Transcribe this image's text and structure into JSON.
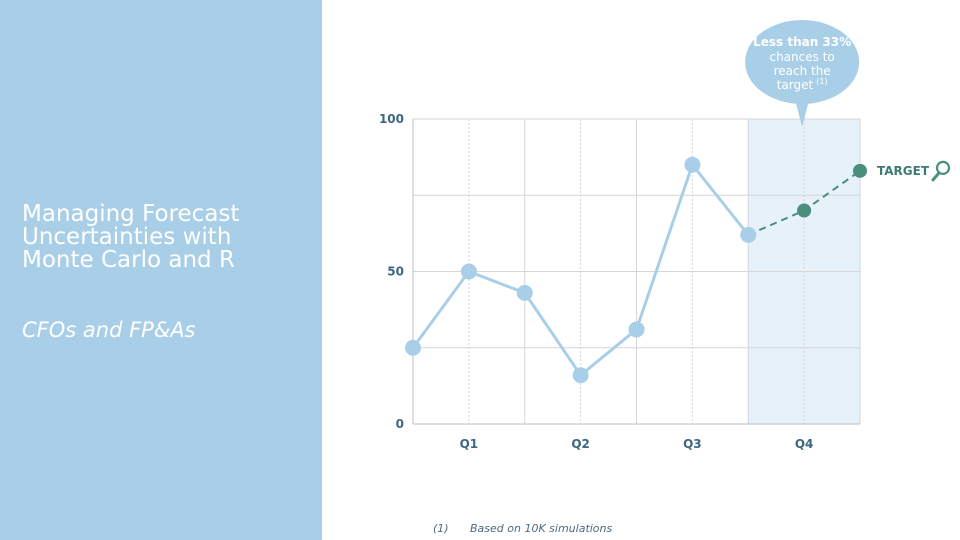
{
  "slide": {
    "title": "Managing Forecast\nUncertainties with\nMonte Carlo and R",
    "subtitle": "CFOs and FP&As"
  },
  "footnote": {
    "marker": "(1)",
    "text": "Based on 10K simulations"
  },
  "colors": {
    "panel": "#a9cfe8",
    "actual": "#a9cfe8",
    "forecast": "#4a8f7d",
    "highlight": "#e6f1fa",
    "grid": "#d6d6d6",
    "bubble": "#a9cfe8"
  },
  "chart_data": {
    "type": "line",
    "categories": [
      "Q1",
      "Q2",
      "Q3",
      "Q4"
    ],
    "ylim": [
      0,
      100
    ],
    "yticks": [
      0,
      50,
      100
    ],
    "xlim": [
      0,
      4
    ],
    "grid": true,
    "series": [
      {
        "style": "solid",
        "points": [
          {
            "x": 0.0,
            "y": 25
          },
          {
            "x": 0.5,
            "y": 50
          },
          {
            "x": 1.0,
            "y": 43
          },
          {
            "x": 1.5,
            "y": 16
          },
          {
            "x": 2.0,
            "y": 31
          },
          {
            "x": 2.5,
            "y": 85
          },
          {
            "x": 3.0,
            "y": 62
          }
        ]
      },
      {
        "style": "dashed",
        "points": [
          {
            "x": 3.0,
            "y": 62
          },
          {
            "x": 3.5,
            "y": 70
          },
          {
            "x": 4.0,
            "y": 83
          }
        ]
      }
    ],
    "highlight_range": [
      3.0,
      4.0
    ],
    "target": {
      "label": "TARGET",
      "y": 83
    },
    "annotation": {
      "bold": "Less than 33%",
      "lines": [
        "chances to",
        "reach the",
        "target"
      ],
      "superscript": "(1)"
    }
  }
}
